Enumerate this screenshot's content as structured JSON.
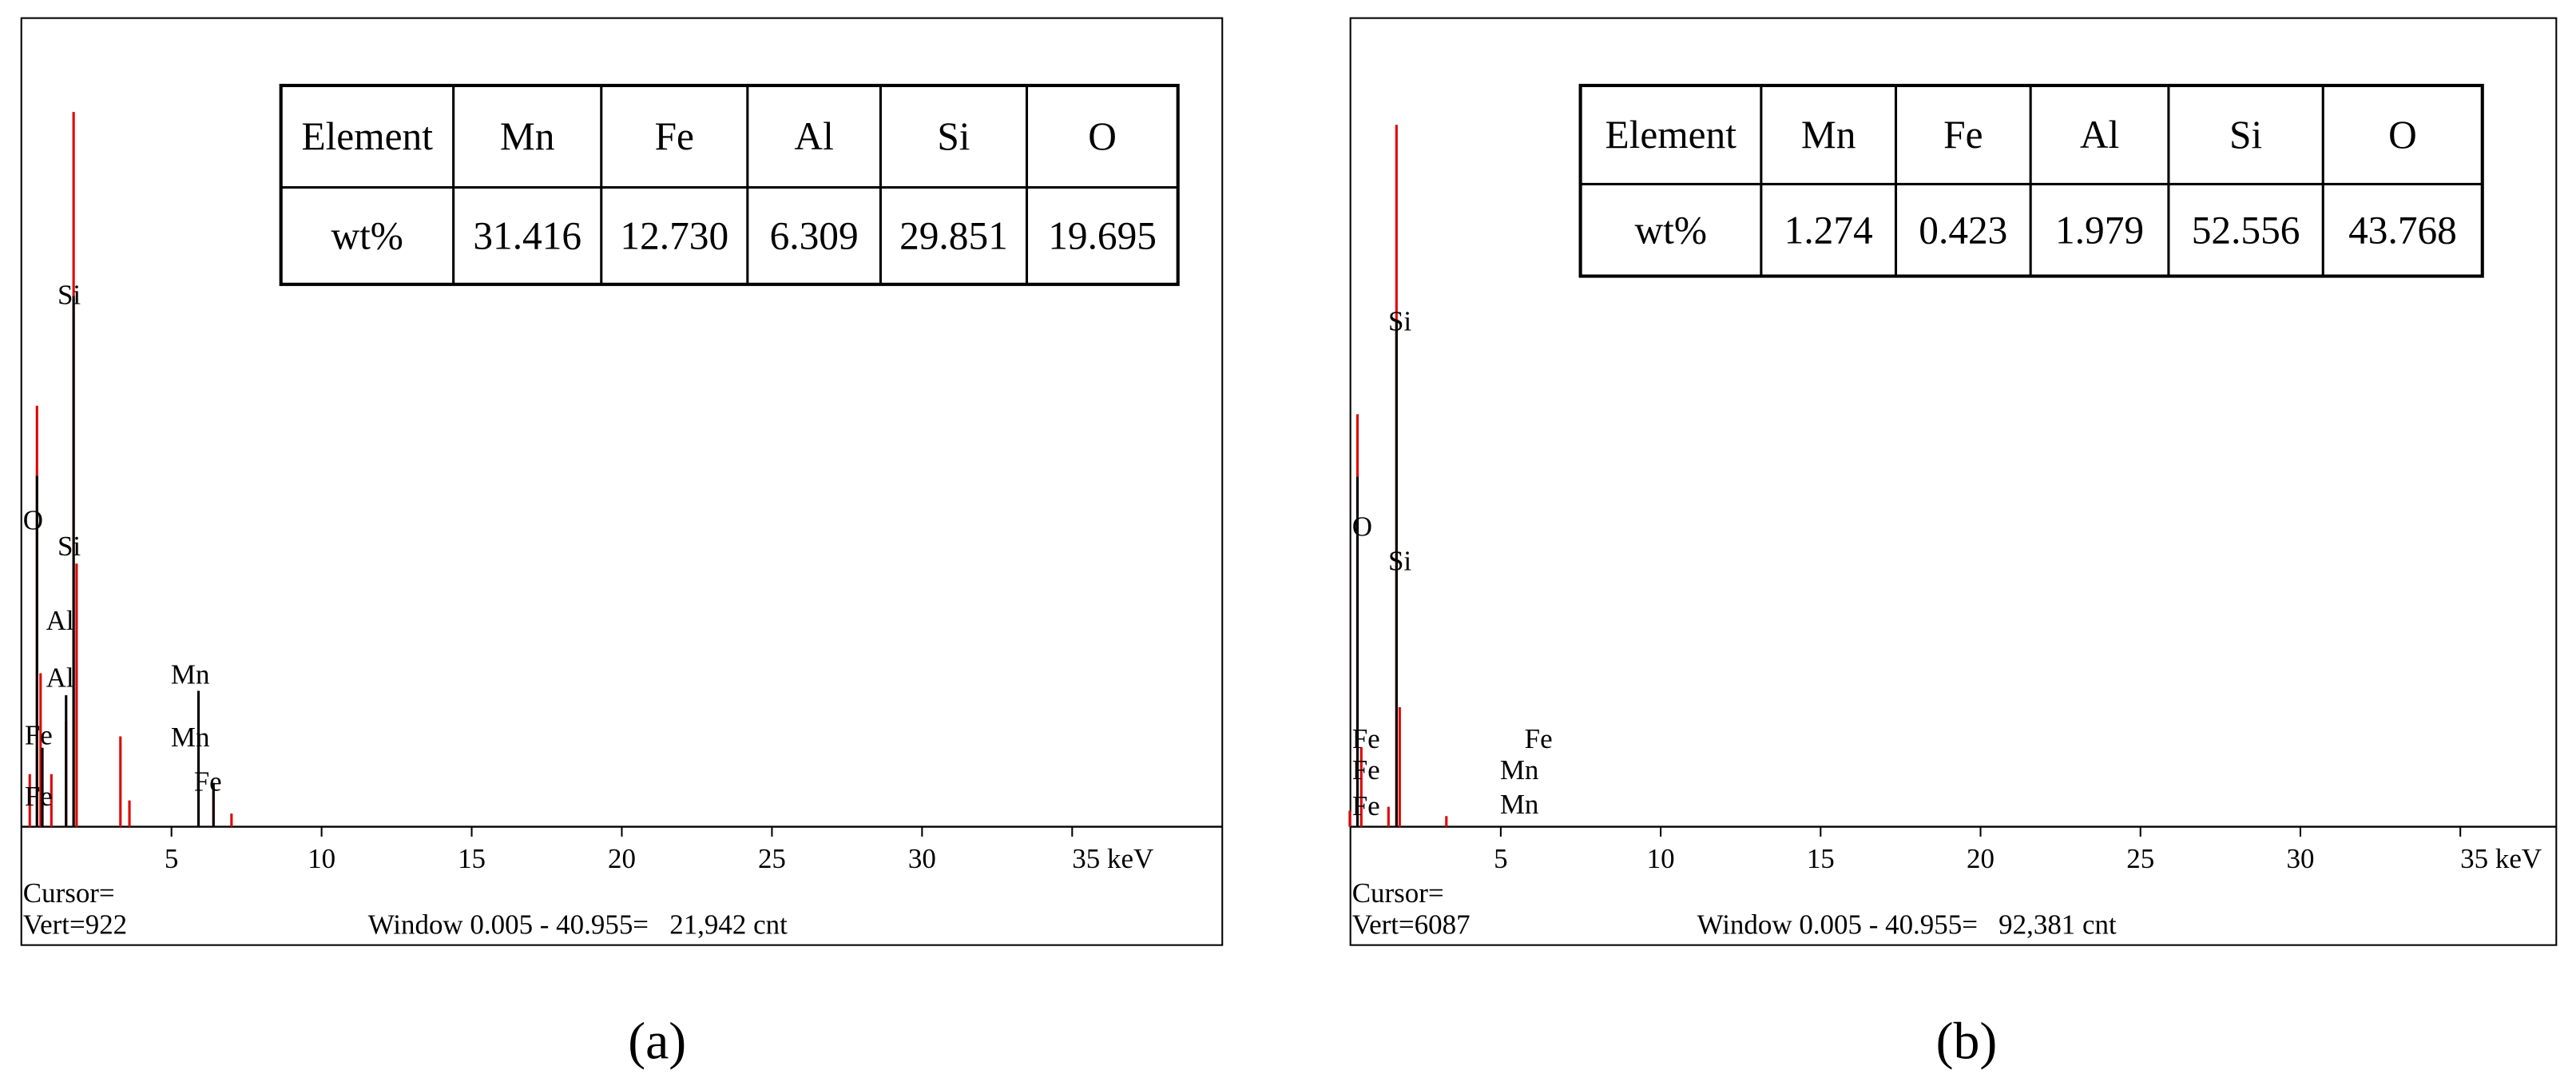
{
  "chart_data": [
    {
      "type": "spectrum",
      "xlim": [
        0,
        40
      ],
      "ylim": [
        0,
        922
      ],
      "xticks": [
        5,
        10,
        15,
        20,
        25,
        30,
        {
          "value": 35,
          "label": "35 keV"
        }
      ],
      "series": [
        {
          "color": "#e00000",
          "x": [
            0.28,
            0.52,
            0.64,
            1.0,
            1.49,
            1.74,
            1.84,
            3.3,
            3.6,
            5.9,
            6.4,
            7.0
          ],
          "values": [
            60,
            480,
            175,
            60,
            120,
            815,
            300,
            103,
            30,
            75,
            45,
            15
          ]
        },
        {
          "color": "#000000",
          "x": [
            0.52,
            0.7,
            1.49,
            1.74,
            5.9,
            6.4
          ],
          "values": [
            400,
            90,
            150,
            605,
            155,
            50
          ]
        }
      ],
      "peak_labels": [
        "Si",
        "O",
        "Si",
        "Al",
        "Al",
        "Mn",
        "Fe",
        "Mn",
        "Fe",
        "Fe"
      ],
      "table": {
        "header": [
          "Element",
          "Mn",
          "Fe",
          "Al",
          "Si",
          "O"
        ],
        "row": [
          "wt%",
          "31.416",
          "12.730",
          "6.309",
          "29.851",
          "19.695"
        ]
      },
      "cursor": "Cursor=",
      "vert": "Vert=922",
      "window": "Window 0.005 - 40.955=   21,942 cnt",
      "caption": "(a)"
    },
    {
      "type": "spectrum",
      "xlim": [
        0.3,
        38
      ],
      "ylim": [
        0,
        6087
      ],
      "xticks": [
        5,
        10,
        15,
        20,
        25,
        30,
        {
          "value": 35,
          "label": "35 keV"
        }
      ],
      "series": [
        {
          "color": "#e00000",
          "x": [
            0.28,
            0.52,
            0.64,
            1.49,
            1.74,
            1.84,
            3.3
          ],
          "values": [
            120,
            3105,
            600,
            150,
            5283,
            900,
            80
          ]
        },
        {
          "color": "#000000",
          "x": [
            0.52,
            1.74
          ],
          "values": [
            2635,
            3810
          ]
        }
      ],
      "peak_labels": [
        "Si",
        "O",
        "Si",
        "Fe",
        "Fe",
        "Fe",
        "Mn",
        "Fe",
        "Mn"
      ],
      "table": {
        "header": [
          "Element",
          "Mn",
          "Fe",
          "Al",
          "Si",
          "O"
        ],
        "row": [
          "wt%",
          "1.274",
          "0.423",
          "1.979",
          "52.556",
          "43.768"
        ]
      },
      "cursor": "Cursor=",
      "vert": "Vert=6087",
      "window": "Window 0.005 - 40.955=   92,381 cnt",
      "caption": "(b)"
    }
  ]
}
